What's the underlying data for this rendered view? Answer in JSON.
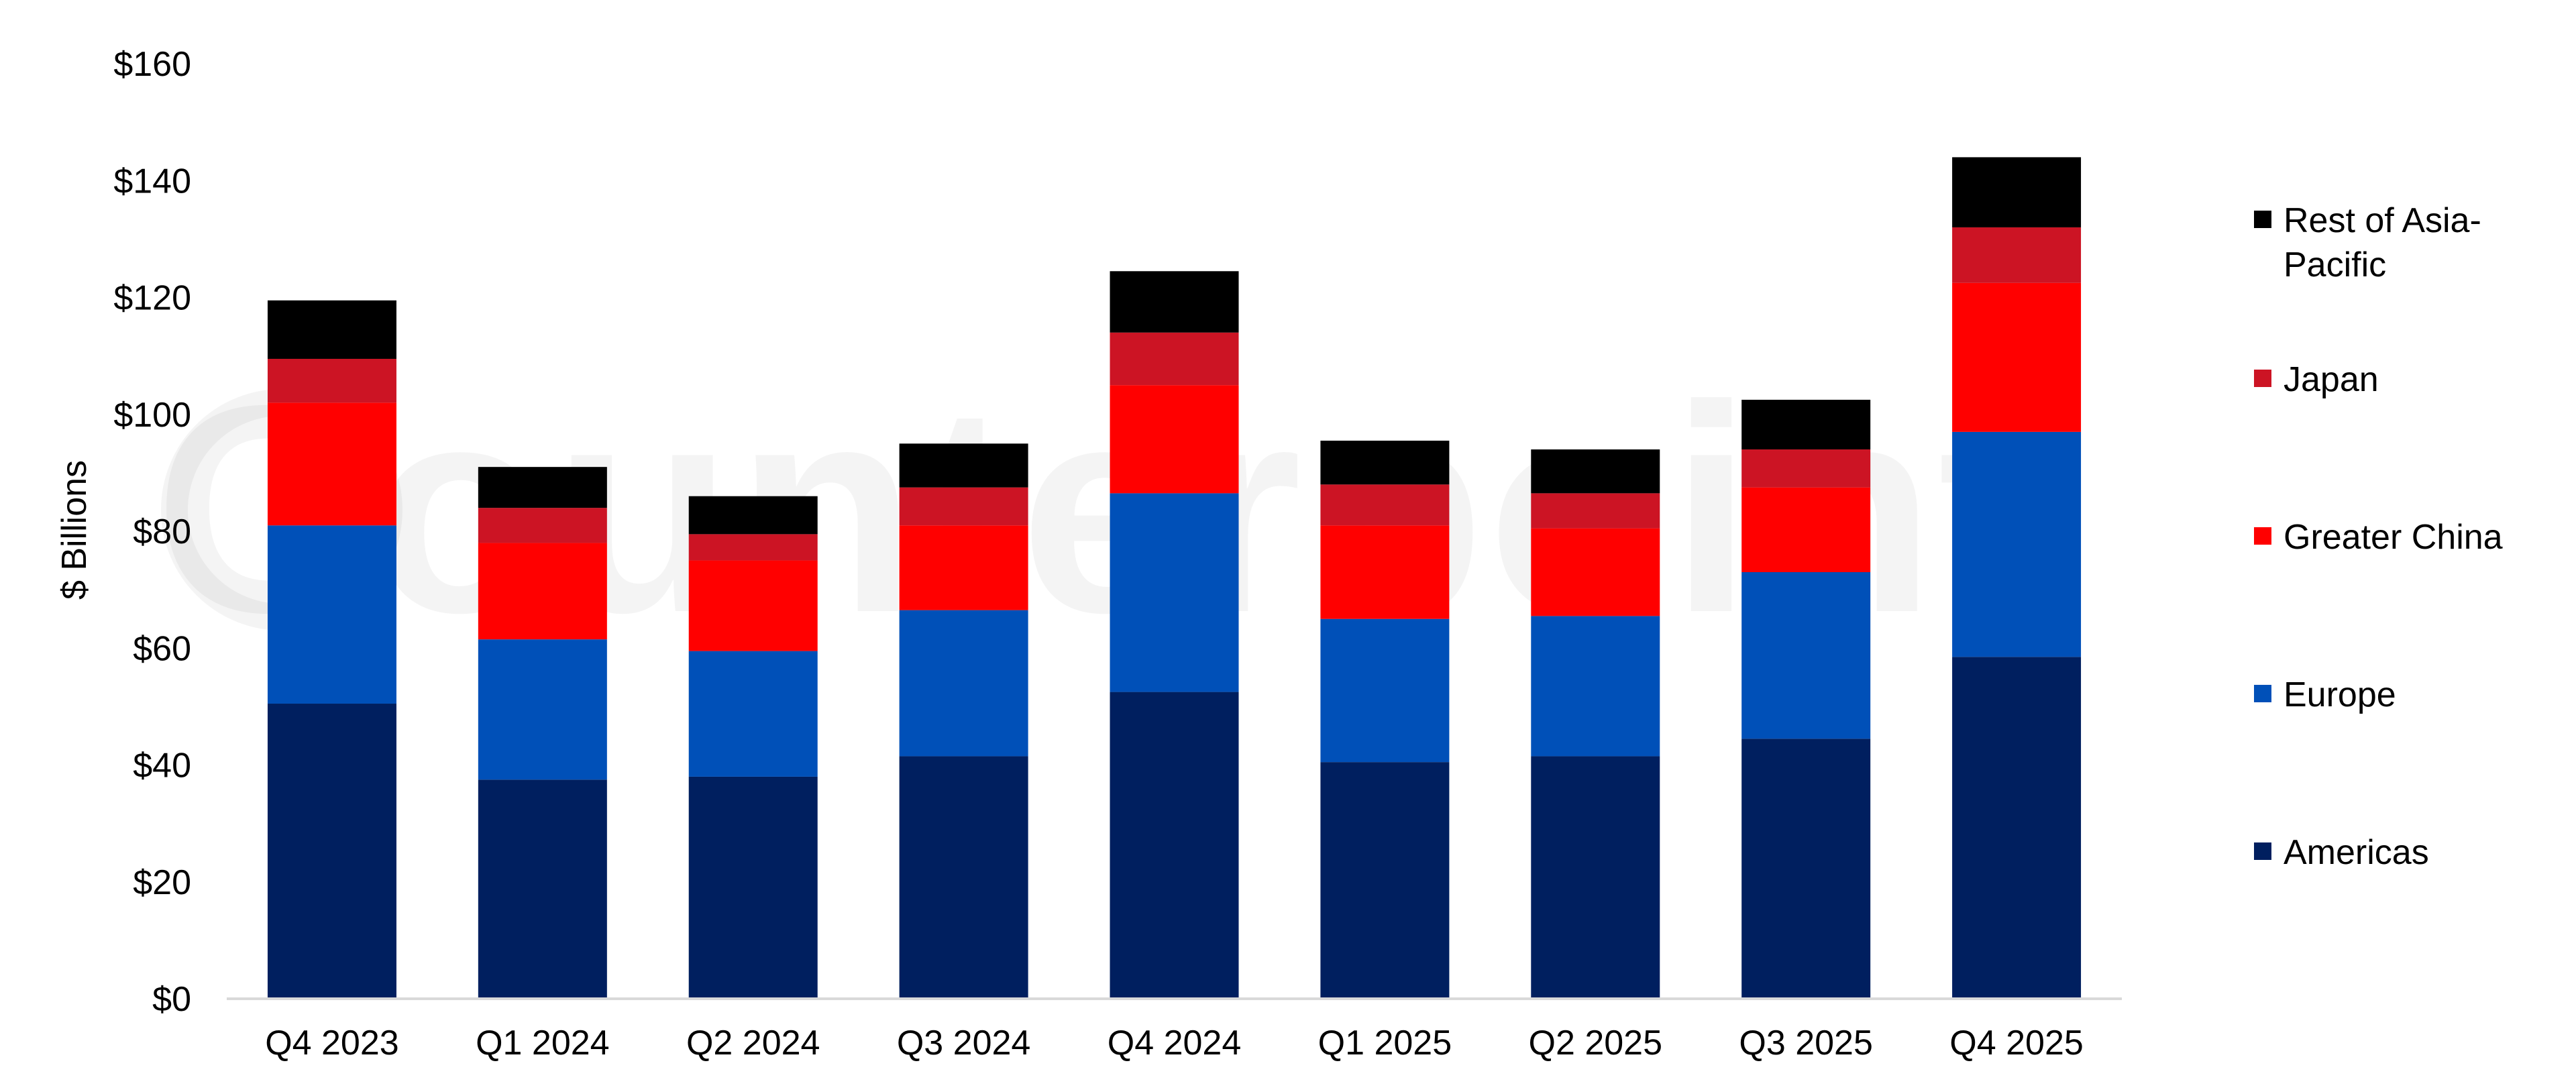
{
  "chart_data": {
    "type": "bar",
    "stacked": true,
    "categories": [
      "Q4 2023",
      "Q1 2024",
      "Q2 2024",
      "Q3 2024",
      "Q4 2024",
      "Q1 2025",
      "Q2 2025",
      "Q3 2025",
      "Q4 2025"
    ],
    "series": [
      {
        "name": "Americas",
        "color": "#001f5f",
        "values": [
          50.5,
          37.5,
          38,
          41.5,
          52.5,
          40.5,
          41.5,
          44.5,
          58.5
        ]
      },
      {
        "name": "Europe",
        "color": "#0050b8",
        "values": [
          30.5,
          24,
          21.5,
          25,
          34,
          24.5,
          24,
          28.5,
          38.5
        ]
      },
      {
        "name": "Greater China",
        "color": "#ff0000",
        "values": [
          21,
          16.5,
          15.5,
          14.5,
          18.5,
          16,
          15,
          14.5,
          25.5
        ]
      },
      {
        "name": "Japan",
        "color": "#cc1424",
        "values": [
          7.5,
          6,
          4.5,
          6.5,
          9,
          7,
          6,
          6.5,
          9.5
        ]
      },
      {
        "name": "Rest of Asia-Pacific",
        "color": "#000000",
        "values": [
          10,
          7,
          6.5,
          7.5,
          10.5,
          7.5,
          7.5,
          8.5,
          12
        ]
      }
    ],
    "ylabel": "$ Billions",
    "ylim": [
      0,
      160
    ],
    "yticks": [
      "$0",
      "$20",
      "$40",
      "$60",
      "$80",
      "$100",
      "$120",
      "$140",
      "$160"
    ],
    "yticks_values": [
      0,
      20,
      40,
      60,
      80,
      100,
      120,
      140,
      160
    ],
    "grid": false,
    "legend_position": "right"
  },
  "watermark": "Counterpoint"
}
